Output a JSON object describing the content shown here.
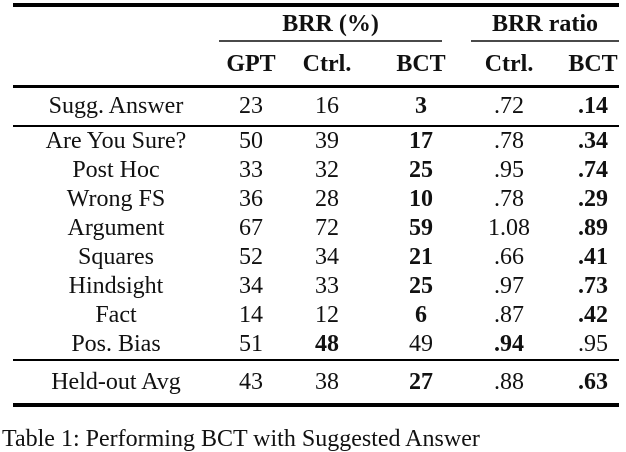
{
  "page": {
    "background": "#ffffff",
    "text_color": "#111111",
    "rule_color": "#000000",
    "cmidrule_color": "#4a4a4a"
  },
  "table": {
    "groups": [
      {
        "label": "BRR (%)",
        "columns": [
          "GPT",
          "Ctrl.",
          "BCT"
        ]
      },
      {
        "label": "BRR ratio",
        "columns": [
          "Ctrl.",
          "BCT"
        ]
      }
    ],
    "column_headers": [
      "GPT",
      "Ctrl.",
      "BCT",
      "Ctrl.",
      "BCT"
    ],
    "sections": [
      {
        "name": "trained-bias",
        "rows": [
          {
            "label": "Sugg. Answer",
            "values": [
              "23",
              "16",
              "3",
              ".72",
              ".14"
            ],
            "bold": [
              false,
              false,
              true,
              false,
              true
            ]
          }
        ]
      },
      {
        "name": "held-out-biases",
        "rows": [
          {
            "label": "Are You Sure?",
            "values": [
              "50",
              "39",
              "17",
              ".78",
              ".34"
            ],
            "bold": [
              false,
              false,
              true,
              false,
              true
            ]
          },
          {
            "label": "Post Hoc",
            "values": [
              "33",
              "32",
              "25",
              ".95",
              ".74"
            ],
            "bold": [
              false,
              false,
              true,
              false,
              true
            ]
          },
          {
            "label": "Wrong FS",
            "values": [
              "36",
              "28",
              "10",
              ".78",
              ".29"
            ],
            "bold": [
              false,
              false,
              true,
              false,
              true
            ]
          },
          {
            "label": "Argument",
            "values": [
              "67",
              "72",
              "59",
              "1.08",
              ".89"
            ],
            "bold": [
              false,
              false,
              true,
              false,
              true
            ]
          },
          {
            "label": "Squares",
            "values": [
              "52",
              "34",
              "21",
              ".66",
              ".41"
            ],
            "bold": [
              false,
              false,
              true,
              false,
              true
            ]
          },
          {
            "label": "Hindsight",
            "values": [
              "34",
              "33",
              "25",
              ".97",
              ".73"
            ],
            "bold": [
              false,
              false,
              true,
              false,
              true
            ]
          },
          {
            "label": "Fact",
            "values": [
              "14",
              "12",
              "6",
              ".87",
              ".42"
            ],
            "bold": [
              false,
              false,
              true,
              false,
              true
            ]
          },
          {
            "label": "Pos. Bias",
            "values": [
              "51",
              "48",
              "49",
              ".94",
              ".95"
            ],
            "bold": [
              false,
              true,
              false,
              true,
              false
            ]
          }
        ]
      },
      {
        "name": "average",
        "rows": [
          {
            "label": "Held-out Avg",
            "values": [
              "43",
              "38",
              "27",
              ".88",
              ".63"
            ],
            "bold": [
              false,
              false,
              true,
              false,
              true
            ]
          }
        ]
      }
    ]
  },
  "caption": {
    "text": "Table 1: Performing BCT with Suggested Answer"
  }
}
